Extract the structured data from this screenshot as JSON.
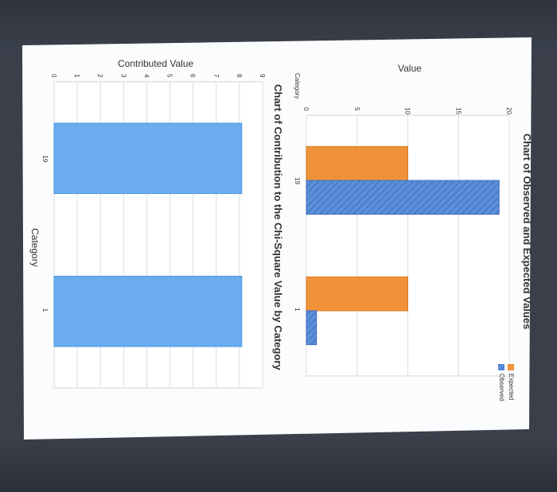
{
  "colors": {
    "expected": "#f0923a",
    "observed": "#5b8fd9",
    "contribution": "#6aacef",
    "grid": "#d9dde3",
    "page": "#fbfcfd"
  },
  "chart_data": [
    {
      "type": "bar",
      "title": "Chart of Observed and Expected Values",
      "xlabel": "Category",
      "ylabel": "Value",
      "categories": [
        "19",
        "1"
      ],
      "series": [
        {
          "name": "Expected",
          "values": [
            10,
            10
          ]
        },
        {
          "name": "Observed",
          "values": [
            19,
            1
          ]
        }
      ],
      "ylim": [
        0,
        20
      ],
      "yticks": [
        "0",
        "5",
        "10",
        "15",
        "20"
      ],
      "legend": "top-right",
      "grid": true
    },
    {
      "type": "bar",
      "title": "Chart of Contribution to the Chi-Square Value by Category",
      "xlabel": "Category",
      "ylabel": "Contributed Value",
      "categories": [
        "19",
        "1"
      ],
      "series": [
        {
          "values": [
            8.1,
            8.1
          ]
        }
      ],
      "ylim": [
        0,
        9
      ],
      "yticks": [
        "0",
        "1",
        "2",
        "3",
        "4",
        "5",
        "6",
        "7",
        "8",
        "9"
      ],
      "grid": true
    }
  ]
}
